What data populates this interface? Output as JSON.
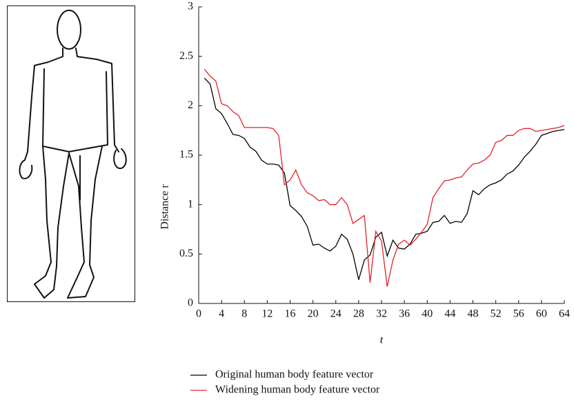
{
  "chart_data": {
    "type": "line",
    "x_label": "t",
    "y_label": "Distance r",
    "x": [
      1,
      2,
      3,
      4,
      5,
      6,
      7,
      8,
      9,
      10,
      11,
      12,
      13,
      14,
      15,
      16,
      17,
      18,
      19,
      20,
      21,
      22,
      23,
      24,
      25,
      26,
      27,
      28,
      29,
      30,
      31,
      32,
      33,
      34,
      35,
      36,
      37,
      38,
      39,
      40,
      41,
      42,
      43,
      44,
      45,
      46,
      47,
      48,
      49,
      50,
      51,
      52,
      53,
      54,
      55,
      56,
      57,
      58,
      59,
      60,
      61,
      62,
      63,
      64
    ],
    "series": [
      {
        "name": "Original human body feature vector",
        "color": "#000000",
        "values": [
          2.28,
          2.22,
          1.97,
          1.92,
          1.82,
          1.71,
          1.7,
          1.67,
          1.58,
          1.54,
          1.45,
          1.41,
          1.41,
          1.4,
          1.32,
          0.99,
          0.94,
          0.88,
          0.78,
          0.59,
          0.6,
          0.56,
          0.53,
          0.58,
          0.7,
          0.65,
          0.5,
          0.24,
          0.44,
          0.49,
          0.67,
          0.72,
          0.48,
          0.64,
          0.56,
          0.55,
          0.6,
          0.7,
          0.71,
          0.73,
          0.82,
          0.83,
          0.89,
          0.81,
          0.83,
          0.82,
          0.91,
          1.14,
          1.1,
          1.16,
          1.2,
          1.22,
          1.25,
          1.31,
          1.34,
          1.4,
          1.48,
          1.54,
          1.61,
          1.7,
          1.72,
          1.74,
          1.75,
          1.76
        ]
      },
      {
        "name": "Widening human body feature vector",
        "color": "#e3202a",
        "values": [
          2.37,
          2.3,
          2.25,
          2.02,
          2.0,
          1.94,
          1.9,
          1.78,
          1.78,
          1.78,
          1.78,
          1.78,
          1.77,
          1.7,
          1.2,
          1.25,
          1.35,
          1.2,
          1.12,
          1.09,
          1.04,
          1.05,
          1.0,
          1.0,
          1.07,
          1.0,
          0.81,
          0.85,
          0.89,
          0.21,
          0.73,
          0.63,
          0.17,
          0.44,
          0.6,
          0.64,
          0.59,
          0.65,
          0.72,
          0.8,
          1.07,
          1.16,
          1.24,
          1.25,
          1.27,
          1.28,
          1.35,
          1.41,
          1.42,
          1.45,
          1.5,
          1.63,
          1.65,
          1.7,
          1.7,
          1.75,
          1.77,
          1.77,
          1.74,
          1.75,
          1.76,
          1.77,
          1.78,
          1.8
        ]
      }
    ],
    "xlim": [
      0,
      64
    ],
    "xticks": [
      0,
      4,
      8,
      12,
      16,
      20,
      24,
      28,
      32,
      36,
      40,
      44,
      48,
      52,
      56,
      60,
      64
    ],
    "ylim": [
      0,
      3
    ],
    "yticks": [
      0,
      0.5,
      1,
      1.5,
      2,
      2.5,
      3
    ],
    "legend": "bottom"
  }
}
